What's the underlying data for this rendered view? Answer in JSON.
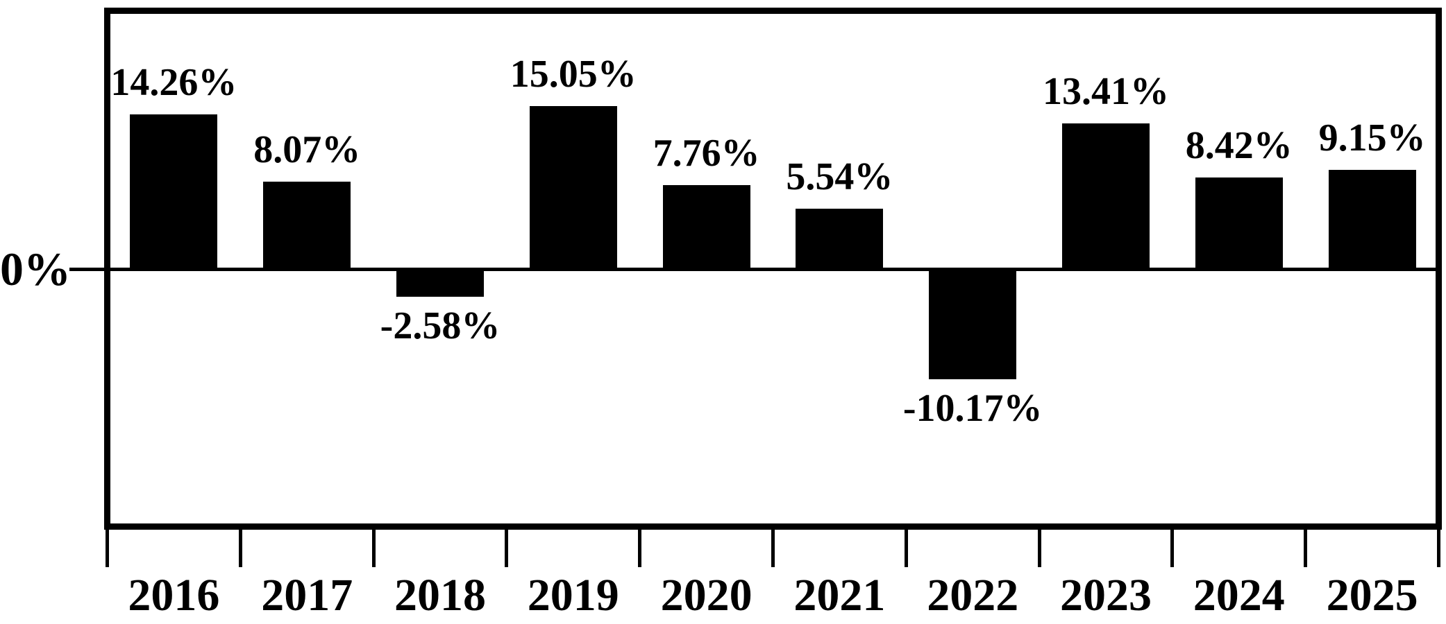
{
  "chart_data": {
    "type": "bar",
    "title": "",
    "xlabel": "",
    "ylabel": "",
    "categories": [
      "2016",
      "2017",
      "2018",
      "2019",
      "2020",
      "2021",
      "2022",
      "2023",
      "2024",
      "2025"
    ],
    "values": [
      14.26,
      8.07,
      -2.58,
      15.05,
      7.76,
      5.54,
      -10.17,
      13.41,
      8.42,
      9.15
    ],
    "value_labels": [
      "14.26%",
      "8.07%",
      "-2.58%",
      "15.05%",
      "7.76%",
      "5.54%",
      "-10.17%",
      "13.41%",
      "8.42%",
      "9.15%"
    ],
    "zero_label": "0%",
    "ylim": [
      -24,
      24
    ],
    "bar_color": "#000000",
    "background_color": "#ffffff",
    "grid": false,
    "legend": false,
    "annotations": "data labels above positive bars and below negative bars"
  }
}
